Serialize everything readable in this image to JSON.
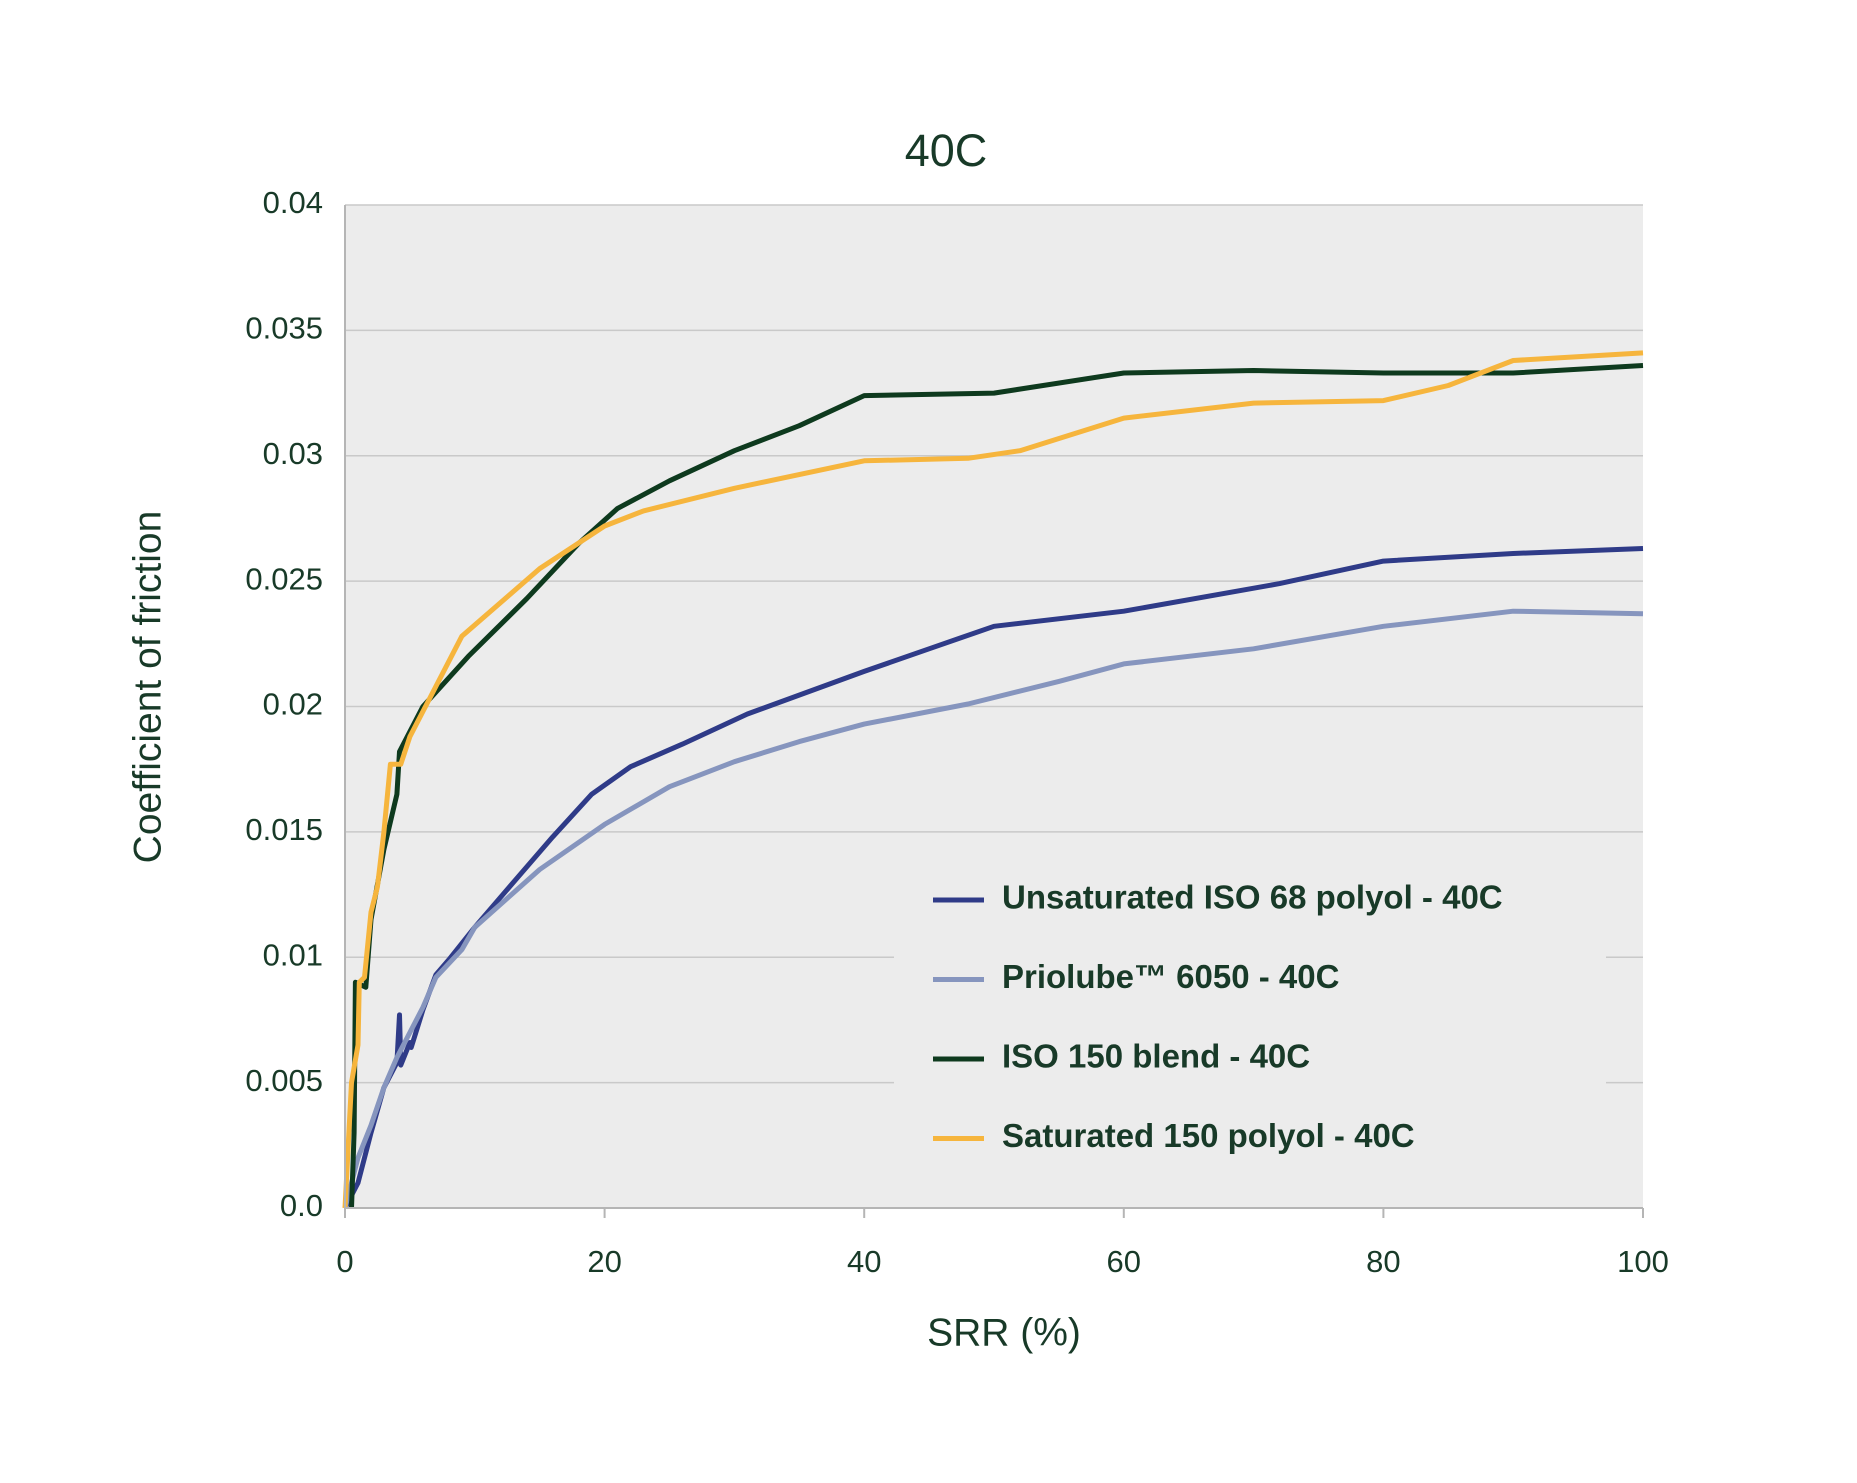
{
  "chart_data": {
    "type": "line",
    "title": "40C",
    "x_label": "SRR (%)",
    "y_label": "Coefficient of friction",
    "xlim": [
      0,
      100
    ],
    "xticks": [
      0,
      20,
      40,
      60,
      80,
      100
    ],
    "ylim": [
      0,
      0.04
    ],
    "yticks": [
      {
        "value": 0,
        "label": "0.0"
      },
      0.005,
      0.01,
      0.015,
      0.02,
      0.025,
      0.03,
      0.035,
      0.04
    ],
    "grid": true,
    "legend": "lower right",
    "series": [
      {
        "name": "Unsaturated ISO 68 polyol - 40C",
        "color": "#2f3b88",
        "x": [
          0,
          1,
          2,
          3,
          4,
          4.2,
          4.3,
          5,
          5.1,
          6,
          7,
          8,
          10,
          13,
          16,
          19,
          22,
          26,
          31,
          40,
          45,
          50,
          60,
          72,
          80,
          90,
          100
        ],
        "values": [
          0,
          0.001,
          0.003,
          0.0048,
          0.0058,
          0.0077,
          0.0057,
          0.0066,
          0.0064,
          0.0079,
          0.0093,
          0.0099,
          0.0112,
          0.013,
          0.0148,
          0.0165,
          0.0176,
          0.0185,
          0.0197,
          0.0214,
          0.0223,
          0.0232,
          0.0238,
          0.0249,
          0.0258,
          0.0261,
          0.0263
        ]
      },
      {
        "name": "Priolube™ 6050 - 40C",
        "color": "#8695be",
        "x": [
          0,
          1,
          2,
          3,
          4,
          5,
          6,
          7,
          9,
          10,
          15,
          20,
          25,
          30,
          35,
          40,
          48,
          55,
          60,
          70,
          80,
          90,
          100
        ],
        "values": [
          0,
          0.002,
          0.0033,
          0.0048,
          0.006,
          0.007,
          0.008,
          0.0092,
          0.0103,
          0.0112,
          0.0135,
          0.0153,
          0.0168,
          0.0178,
          0.0186,
          0.0193,
          0.0201,
          0.021,
          0.0217,
          0.0223,
          0.0232,
          0.0238,
          0.0237
        ]
      },
      {
        "name": "ISO 150 blend - 40C",
        "color": "#0e3a1e",
        "x": [
          0.5,
          0.7,
          0.8,
          1.6,
          2,
          3,
          4,
          4.2,
          6,
          9.5,
          14,
          18,
          21,
          25,
          30,
          35,
          40,
          50,
          60,
          70,
          80,
          90,
          100
        ],
        "values": [
          0,
          0.003,
          0.009,
          0.0088,
          0.0115,
          0.0143,
          0.0165,
          0.0182,
          0.02,
          0.022,
          0.0243,
          0.0265,
          0.0279,
          0.029,
          0.0302,
          0.0312,
          0.0324,
          0.0325,
          0.0333,
          0.0334,
          0.0333,
          0.0333,
          0.0336
        ]
      },
      {
        "name": "Saturated 150 polyol - 40C",
        "color": "#f6b53d",
        "x": [
          0,
          0.5,
          1,
          1.1,
          1.5,
          2,
          2.5,
          3,
          3.5,
          4.3,
          5,
          7,
          9,
          15,
          20,
          23,
          30,
          40,
          48,
          52,
          60,
          70,
          80,
          85,
          90,
          100
        ],
        "values": [
          0,
          0.005,
          0.0065,
          0.009,
          0.0092,
          0.0118,
          0.0128,
          0.015,
          0.0177,
          0.0177,
          0.0188,
          0.0208,
          0.0228,
          0.0255,
          0.0272,
          0.0278,
          0.0287,
          0.0298,
          0.0299,
          0.0302,
          0.0315,
          0.0321,
          0.0322,
          0.0328,
          0.0338,
          0.0341
        ]
      }
    ]
  }
}
